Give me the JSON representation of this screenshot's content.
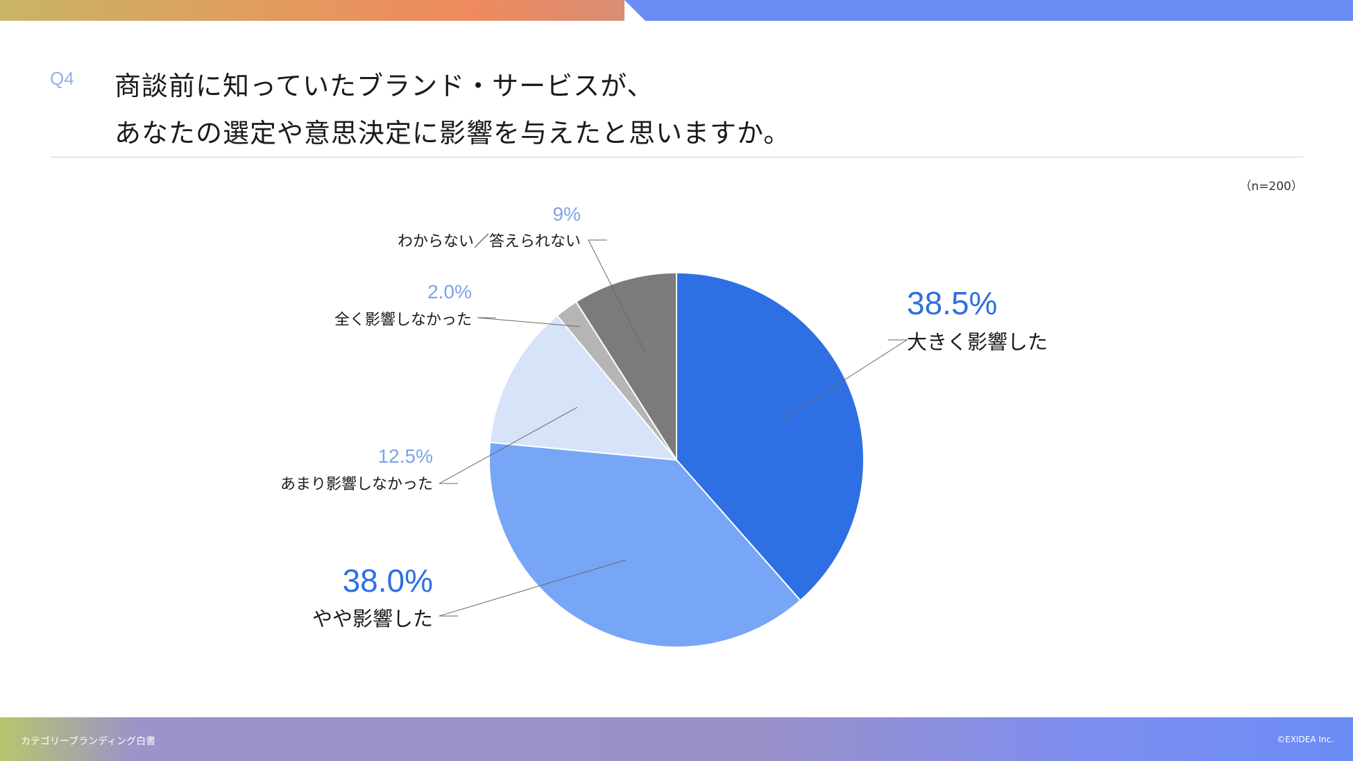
{
  "header": {
    "question_number": "Q4",
    "title_line1": "商談前に知っていたブランド・サービスが、",
    "title_line2": "あなたの選定や意思決定に影響を与えたと思いますか。"
  },
  "sample_size": "（n=200）",
  "footer": {
    "left": "カテゴリーブランディング白書",
    "right": "©EXIDEA Inc."
  },
  "chart_data": {
    "type": "pie",
    "slices": [
      {
        "label": "大きく影響した",
        "value": 38.5,
        "value_label": "38.5%",
        "color": "#2e6fe3"
      },
      {
        "label": "やや影響した",
        "value": 38.0,
        "value_label": "38.0%",
        "color": "#77a6f7"
      },
      {
        "label": "あまり影響しなかった",
        "value": 12.5,
        "value_label": "12.5%",
        "color": "#d6e3f8"
      },
      {
        "label": "全く影響しなかった",
        "value": 2.0,
        "value_label": "2.0%",
        "color": "#b5b5b5"
      },
      {
        "label": "わからない／答えられない",
        "value": 9,
        "value_label": "9%",
        "color": "#7b7b7b"
      }
    ],
    "start_angle_deg": 0,
    "direction": "clockwise",
    "label_colors": {
      "major": "#2e6fe3",
      "minor": "#7ba3e6"
    }
  }
}
